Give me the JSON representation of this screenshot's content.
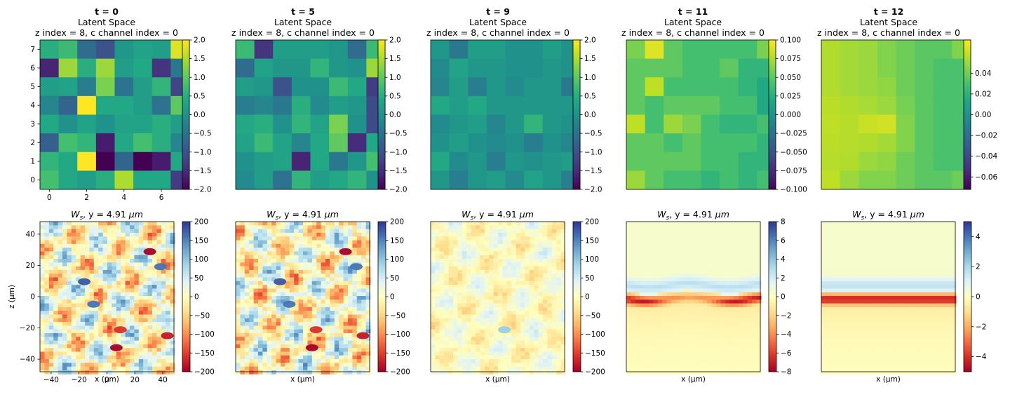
{
  "colors": {
    "viridis": [
      "#440154",
      "#482475",
      "#414487",
      "#355f8d",
      "#2a788e",
      "#21918c",
      "#22a884",
      "#44bf70",
      "#7ad151",
      "#bddf26",
      "#fde725"
    ],
    "rdylbu": [
      "#a50026",
      "#d73027",
      "#f46d43",
      "#fdae61",
      "#fee090",
      "#ffffbf",
      "#e0f3f8",
      "#abd9e9",
      "#74add1",
      "#4575b4",
      "#313695"
    ]
  },
  "chart_data": [
    {
      "type": "heatmap",
      "title_bold": "t = 0",
      "title_line2": "Latent Space",
      "title_line3": "z index = 8, c channel index = 0",
      "cbar_range": [
        -2,
        2
      ],
      "cbar_ticks": [
        "2.0",
        "1.5",
        "1.0",
        "0.5",
        "0.0",
        "−0.5",
        "−1.0",
        "−1.5",
        "−2.0"
      ],
      "xticks": [
        "0",
        "2",
        "4",
        "6"
      ],
      "yticks": [
        "7",
        "6",
        "5",
        "4",
        "3",
        "2",
        "1",
        "0"
      ],
      "values": [
        [
          0.5,
          0.7,
          -0.6,
          -1.0,
          0.1,
          0.3,
          0.2,
          1.8
        ],
        [
          -1.6,
          1.4,
          0.5,
          1.4,
          0.2,
          0.4,
          -1.4,
          -0.4
        ],
        [
          0.2,
          0.3,
          -0.3,
          1.2,
          -0.5,
          0.2,
          0.6,
          -1.2
        ],
        [
          -0.2,
          -0.7,
          2.0,
          0.4,
          0.4,
          0.2,
          -0.5,
          1.0
        ],
        [
          0.4,
          0.0,
          0.3,
          0.0,
          0.3,
          0.3,
          0.5,
          0.2
        ],
        [
          -0.8,
          0.8,
          0.6,
          -1.7,
          0.4,
          0.8,
          0.5,
          -0.2
        ],
        [
          0.6,
          0.4,
          2.0,
          -2.0,
          -0.7,
          -2.0,
          -1.7,
          0.4
        ],
        [
          0.8,
          0.4,
          0.2,
          0.5,
          1.5,
          0.4,
          0.4,
          -1.3
        ]
      ]
    },
    {
      "type": "heatmap",
      "title_bold": "t = 5",
      "title_line2": "Latent Space",
      "title_line3": "z index = 8, c channel index = 0",
      "cbar_range": [
        -2,
        2
      ],
      "cbar_ticks": [
        "2.0",
        "1.5",
        "1.0",
        "0.5",
        "0.0",
        "−0.5",
        "−1.0",
        "−1.5",
        "−2.0"
      ],
      "values": [
        [
          0.7,
          -1.4,
          0.2,
          0.2,
          0.2,
          0.1,
          -0.6,
          0.7
        ],
        [
          -0.6,
          0.3,
          0.1,
          0.1,
          0.6,
          0.1,
          0.0,
          1.4
        ],
        [
          0.2,
          0.1,
          -1.0,
          0.0,
          0.0,
          0.7,
          0.4,
          -1.3
        ],
        [
          -0.3,
          -0.2,
          -0.4,
          0.5,
          -0.1,
          0.2,
          0.1,
          -1.1
        ],
        [
          0.4,
          0.5,
          0.0,
          0.6,
          0.3,
          1.2,
          0.0,
          -1.1
        ],
        [
          0.3,
          0.7,
          0.3,
          -0.2,
          0.4,
          1.0,
          -1.5,
          0.4
        ],
        [
          0.0,
          0.2,
          0.3,
          -1.6,
          0.4,
          -0.4,
          0.1,
          0.8
        ],
        [
          -0.1,
          0.2,
          -0.5,
          0.6,
          0.2,
          0.4,
          0.6,
          0.0
        ]
      ]
    },
    {
      "type": "heatmap",
      "title_bold": "t = 9",
      "title_line2": "Latent Space",
      "title_line3": "z index = 8, c channel index = 0",
      "cbar_range": [
        -2,
        2
      ],
      "cbar_ticks": [
        "2.0",
        "1.5",
        "1.0",
        "0.5",
        "0.0",
        "−0.5",
        "−1.0",
        "−1.5",
        "−2.0"
      ],
      "values": [
        [
          0.1,
          -0.4,
          0.2,
          0.2,
          0.0,
          0.0,
          0.2,
          0.0
        ],
        [
          -0.1,
          0.3,
          0.1,
          0.1,
          0.0,
          0.0,
          0.1,
          0.0
        ],
        [
          -0.2,
          0.2,
          -0.3,
          0.1,
          -0.1,
          0.1,
          0.1,
          -0.4
        ],
        [
          0.4,
          0.2,
          0.4,
          0.1,
          0.1,
          0.1,
          0.1,
          0.1
        ],
        [
          -0.1,
          0.1,
          0.2,
          -0.2,
          0.1,
          0.6,
          0.1,
          0.0
        ],
        [
          0.0,
          0.2,
          0.0,
          -0.1,
          0.0,
          -0.3,
          0.0,
          -0.2
        ],
        [
          0.4,
          -0.1,
          0.1,
          -0.3,
          0.1,
          0.0,
          0.1,
          0.2
        ],
        [
          0.1,
          -0.3,
          0.1,
          0.2,
          -0.1,
          0.3,
          0.1,
          -0.3
        ]
      ]
    },
    {
      "type": "heatmap",
      "title_bold": "t = 11",
      "title_line2": "Latent Space",
      "title_line3": "z index = 8, c channel index = 0",
      "cbar_range": [
        -0.1,
        0.1
      ],
      "cbar_ticks": [
        "0.100",
        "0.075",
        "0.050",
        "0.025",
        "0.000",
        "−0.025",
        "−0.050",
        "−0.075",
        "−0.100"
      ],
      "values": [
        [
          0.06,
          0.09,
          0.05,
          0.04,
          0.04,
          0.04,
          0.04,
          0.06
        ],
        [
          0.05,
          0.05,
          0.05,
          0.04,
          0.04,
          0.05,
          0.03,
          0.03
        ],
        [
          0.05,
          0.08,
          0.04,
          0.04,
          0.04,
          0.04,
          0.03,
          0.02
        ],
        [
          0.05,
          0.04,
          0.05,
          0.05,
          0.05,
          0.04,
          0.04,
          0.02
        ],
        [
          0.08,
          0.04,
          0.07,
          0.06,
          0.04,
          0.03,
          0.03,
          0.04
        ],
        [
          0.05,
          0.05,
          0.04,
          0.05,
          0.04,
          0.04,
          0.04,
          0.03
        ],
        [
          0.05,
          0.05,
          0.05,
          0.05,
          0.04,
          0.04,
          0.03,
          0.03
        ],
        [
          0.07,
          0.05,
          0.04,
          0.04,
          0.03,
          0.04,
          0.03,
          0.04
        ]
      ]
    },
    {
      "type": "heatmap",
      "title_bold": "t = 12",
      "title_line2": "Latent Space",
      "title_line3": "z index = 8, c channel index = 0",
      "cbar_range": [
        -0.072,
        0.072
      ],
      "cbar_ticks": [
        "0.04",
        "0.02",
        "0.00",
        "−0.02",
        "−0.04",
        "−0.06"
      ],
      "cbar_tick_values": [
        0.04,
        0.02,
        0.0,
        -0.02,
        -0.04,
        -0.06
      ],
      "values": [
        [
          0.055,
          0.052,
          0.05,
          0.045,
          0.04,
          0.035,
          0.035,
          0.045
        ],
        [
          0.055,
          0.052,
          0.05,
          0.045,
          0.04,
          0.035,
          0.03,
          0.03
        ],
        [
          0.055,
          0.052,
          0.05,
          0.048,
          0.04,
          0.035,
          0.03,
          0.03
        ],
        [
          0.057,
          0.055,
          0.053,
          0.05,
          0.042,
          0.035,
          0.03,
          0.03
        ],
        [
          0.058,
          0.056,
          0.06,
          0.062,
          0.045,
          0.035,
          0.03,
          0.03
        ],
        [
          0.057,
          0.056,
          0.055,
          0.052,
          0.045,
          0.035,
          0.03,
          0.03
        ],
        [
          0.056,
          0.055,
          0.05,
          0.048,
          0.04,
          0.035,
          0.03,
          0.03
        ],
        [
          0.058,
          0.05,
          0.045,
          0.045,
          0.04,
          0.035,
          0.035,
          0.04
        ]
      ]
    },
    {
      "type": "heatmap",
      "title": "W_s, y = 4.91 μm",
      "title_main": "W",
      "title_sub": "s",
      "title_rest": ", y = 4.91 ",
      "title_unit": "μm",
      "xlabel": "x (μm)",
      "ylabel": "z (μm)",
      "xticks": [
        "−40",
        "−20",
        "0",
        "20",
        "40"
      ],
      "yticks": [
        "40",
        "20",
        "0",
        "−20",
        "−40"
      ],
      "cbar_range": [
        -200,
        200
      ],
      "cbar_ticks": [
        "200",
        "150",
        "100",
        "50",
        "0",
        "−50",
        "−100",
        "−150",
        "−200"
      ],
      "pattern": "noisy"
    },
    {
      "type": "heatmap",
      "title": "W_s, y = 4.91 μm",
      "xlabel": "x (μm)",
      "cbar_range": [
        -200,
        200
      ],
      "cbar_ticks": [
        "200",
        "150",
        "100",
        "50",
        "0",
        "−50",
        "−100",
        "−150",
        "−200"
      ],
      "pattern": "noisy"
    },
    {
      "type": "heatmap",
      "title": "W_s, y = 4.91 μm",
      "xlabel": "x (μm)",
      "cbar_range": [
        -200,
        200
      ],
      "cbar_ticks": [
        "200",
        "150",
        "100",
        "50",
        "0",
        "−50",
        "−100",
        "−150",
        "−200"
      ],
      "pattern": "faint"
    },
    {
      "type": "heatmap",
      "title": "W_s, y = 4.91 μm",
      "xlabel": "x (μm)",
      "cbar_range": [
        -8,
        8
      ],
      "cbar_ticks": [
        "8",
        "6",
        "4",
        "2",
        "0",
        "−2",
        "−4",
        "−6",
        "−8"
      ],
      "pattern": "band"
    },
    {
      "type": "heatmap",
      "title": "W_s, y = 4.91 μm",
      "xlabel": "x (μm)",
      "cbar_range": [
        -5,
        5
      ],
      "cbar_ticks": [
        "4",
        "2",
        "0",
        "−2",
        "−4"
      ],
      "cbar_tick_values": [
        4,
        2,
        0,
        -2,
        -4
      ],
      "pattern": "band-strong"
    }
  ]
}
